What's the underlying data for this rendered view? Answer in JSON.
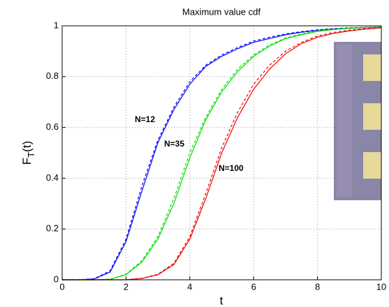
{
  "chart_data": {
    "type": "line",
    "title": "Maximum value cdf",
    "xlabel": "t",
    "ylabel": [
      "F",
      "T",
      "(t)"
    ],
    "x": [
      0,
      0.5,
      1,
      1.5,
      2,
      2.5,
      3,
      3.5,
      4,
      4.5,
      5,
      5.5,
      6,
      6.5,
      7,
      7.5,
      8,
      8.5,
      9,
      9.5,
      10
    ],
    "series": [
      {
        "name": "N=12",
        "color": "#0000ff",
        "dashed": false,
        "values": [
          0,
          0,
          0.003,
          0.03,
          0.15,
          0.35,
          0.54,
          0.67,
          0.77,
          0.84,
          0.88,
          0.91,
          0.935,
          0.95,
          0.965,
          0.975,
          0.982,
          0.987,
          0.99,
          0.993,
          0.995
        ]
      },
      {
        "color": "#0000ff",
        "dashed": true,
        "values": [
          0,
          0,
          0.004,
          0.035,
          0.16,
          0.37,
          0.55,
          0.68,
          0.78,
          0.845,
          0.885,
          0.915,
          0.94,
          0.955,
          0.968,
          0.977,
          0.984,
          0.989,
          0.992,
          0.994,
          0.996
        ]
      },
      {
        "name": "N=35",
        "color": "#00dd00",
        "dashed": false,
        "values": [
          0,
          0,
          0,
          0.002,
          0.02,
          0.07,
          0.16,
          0.3,
          0.48,
          0.63,
          0.74,
          0.82,
          0.88,
          0.92,
          0.95,
          0.965,
          0.978,
          0.985,
          0.99,
          0.993,
          0.995
        ]
      },
      {
        "color": "#00dd00",
        "dashed": true,
        "values": [
          0,
          0,
          0,
          0.002,
          0.022,
          0.075,
          0.17,
          0.32,
          0.5,
          0.64,
          0.75,
          0.83,
          0.885,
          0.925,
          0.952,
          0.968,
          0.98,
          0.987,
          0.991,
          0.994,
          0.996
        ]
      },
      {
        "name": "N=100",
        "color": "#ee0000",
        "dashed": false,
        "values": [
          0,
          0,
          0,
          0,
          0,
          0.005,
          0.02,
          0.06,
          0.16,
          0.32,
          0.5,
          0.64,
          0.75,
          0.83,
          0.89,
          0.93,
          0.955,
          0.97,
          0.98,
          0.987,
          0.992
        ]
      },
      {
        "color": "#ee0000",
        "dashed": true,
        "values": [
          0,
          0,
          0,
          0,
          0,
          0.006,
          0.022,
          0.065,
          0.17,
          0.34,
          0.52,
          0.66,
          0.77,
          0.845,
          0.9,
          0.935,
          0.96,
          0.974,
          0.983,
          0.989,
          0.993
        ]
      }
    ],
    "annotations": [
      "N=12",
      "N=35",
      "N=100"
    ],
    "xlim": [
      0,
      10
    ],
    "xticks": [
      0,
      2,
      4,
      6,
      8,
      10
    ],
    "ylim": [
      0,
      1
    ],
    "yticks": [
      0,
      0.2,
      0.4,
      0.6,
      0.8,
      1
    ],
    "grid": true
  }
}
